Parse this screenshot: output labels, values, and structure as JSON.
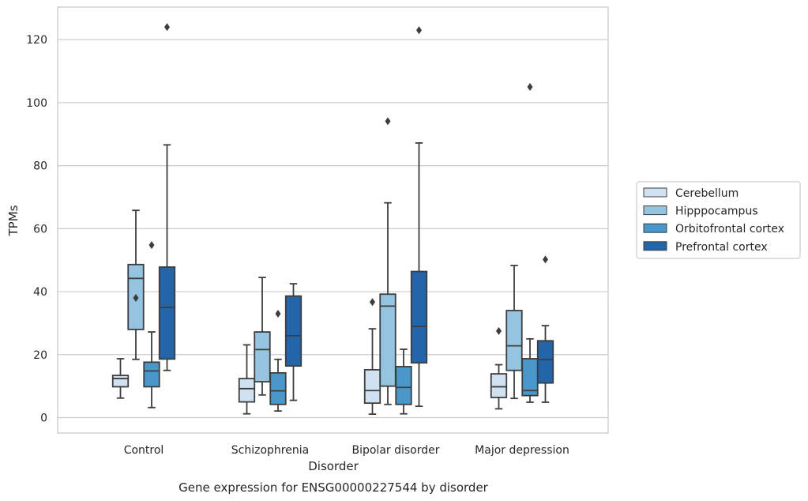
{
  "chart_data": {
    "type": "box",
    "title": "",
    "caption": "Gene expression for ENSG00000227544 by disorder",
    "xlabel": "Disorder",
    "ylabel": "TPMs",
    "ylim": [
      -4.5,
      130
    ],
    "yticks": [
      0,
      20,
      40,
      60,
      80,
      100,
      120
    ],
    "grid": true,
    "legend_placement": "right",
    "categories": [
      "Control",
      "Schizophrenia",
      "Bipolar disorder",
      "Major depression"
    ],
    "series": [
      {
        "name": "Cerebellum",
        "color": "#d0e1f2",
        "boxes": [
          {
            "whisker_low": 6.2,
            "q1": 9.8,
            "median": 12.4,
            "q3": 13.4,
            "whisker_high": 18.7,
            "outliers": []
          },
          {
            "whisker_low": 1.2,
            "q1": 5.0,
            "median": 9.2,
            "q3": 12.4,
            "whisker_high": 23.1,
            "outliers": []
          },
          {
            "whisker_low": 1.1,
            "q1": 4.6,
            "median": 8.6,
            "q3": 15.2,
            "whisker_high": 28.2,
            "outliers": [
              36.7
            ]
          },
          {
            "whisker_low": 2.8,
            "q1": 6.4,
            "median": 9.8,
            "q3": 13.9,
            "whisker_high": 16.8,
            "outliers": [
              27.5
            ]
          }
        ]
      },
      {
        "name": "Hipppocampus",
        "color": "#94c4df",
        "boxes": [
          {
            "whisker_low": 18.5,
            "q1": 28.0,
            "median": 44.2,
            "q3": 48.6,
            "whisker_high": 65.8,
            "outliers": [
              38.0
            ]
          },
          {
            "whisker_low": 7.2,
            "q1": 11.4,
            "median": 21.6,
            "q3": 27.2,
            "whisker_high": 44.5,
            "outliers": []
          },
          {
            "whisker_low": 4.2,
            "q1": 10.0,
            "median": 35.4,
            "q3": 39.2,
            "whisker_high": 68.2,
            "outliers": [
              94.1
            ]
          },
          {
            "whisker_low": 6.1,
            "q1": 15.0,
            "median": 22.8,
            "q3": 34.0,
            "whisker_high": 48.3,
            "outliers": []
          }
        ]
      },
      {
        "name": "Orbitofrontal cortex",
        "color": "#4a98c9",
        "boxes": [
          {
            "whisker_low": 3.2,
            "q1": 9.8,
            "median": 14.8,
            "q3": 17.6,
            "whisker_high": 27.2,
            "outliers": [
              54.8
            ]
          },
          {
            "whisker_low": 2.1,
            "q1": 4.2,
            "median": 8.5,
            "q3": 14.2,
            "whisker_high": 18.5,
            "outliers": [
              33.0
            ]
          },
          {
            "whisker_low": 1.2,
            "q1": 4.2,
            "median": 9.6,
            "q3": 16.2,
            "whisker_high": 21.7,
            "outliers": []
          },
          {
            "whisker_low": 4.9,
            "q1": 7.0,
            "median": 8.6,
            "q3": 18.7,
            "whisker_high": 25.0,
            "outliers": [
              105.0
            ]
          }
        ]
      },
      {
        "name": "Prefrontal cortex",
        "color": "#2464a8",
        "boxes": [
          {
            "whisker_low": 15.0,
            "q1": 18.6,
            "median": 35.0,
            "q3": 47.8,
            "whisker_high": 86.6,
            "outliers": [
              124.0
            ]
          },
          {
            "whisker_low": 5.5,
            "q1": 16.4,
            "median": 26.0,
            "q3": 38.6,
            "whisker_high": 42.5,
            "outliers": []
          },
          {
            "whisker_low": 3.6,
            "q1": 17.4,
            "median": 29.0,
            "q3": 46.4,
            "whisker_high": 87.2,
            "outliers": [
              123.0
            ]
          },
          {
            "whisker_low": 4.9,
            "q1": 11.0,
            "median": 18.4,
            "q3": 24.4,
            "whisker_high": 29.2,
            "outliers": [
              50.2
            ]
          }
        ]
      }
    ]
  }
}
